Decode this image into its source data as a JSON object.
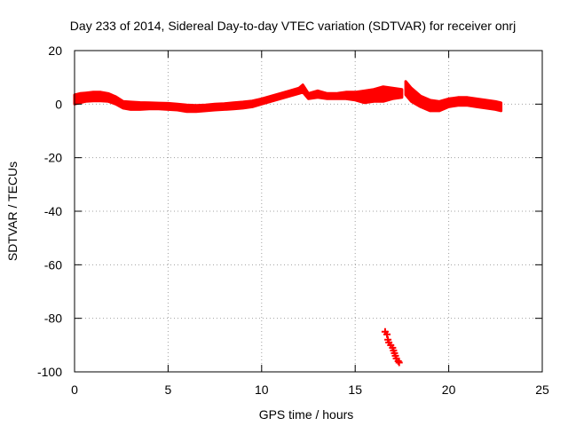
{
  "chart_data": {
    "type": "scatter",
    "title": "Day 233 of 2014, Sidereal Day-to-day VTEC variation (SDTVAR) for receiver onrj",
    "xlabel": "GPS time / hours",
    "ylabel": "SDTVAR / TECUs",
    "xlim": [
      0,
      25
    ],
    "ylim": [
      -100,
      20
    ],
    "xticks": [
      0,
      5,
      10,
      15,
      20,
      25
    ],
    "yticks": [
      -100,
      -80,
      -60,
      -40,
      -20,
      0,
      20
    ],
    "xtick_labels": [
      "0",
      "5",
      "10",
      "15",
      "20",
      "25"
    ],
    "ytick_labels": [
      "-100",
      "-80",
      "-60",
      "-40",
      "-20",
      "0",
      "20"
    ],
    "grid": true,
    "legend": "none",
    "marker": "plus",
    "color": "#ff0000",
    "series": [
      {
        "segments": [
          {
            "upper": [
              [
                0.0,
                3.5
              ],
              [
                0.3,
                4.0
              ],
              [
                0.6,
                4.2
              ],
              [
                1.0,
                4.5
              ],
              [
                1.4,
                4.5
              ],
              [
                1.8,
                4.0
              ],
              [
                2.2,
                2.8
              ],
              [
                2.6,
                1.0
              ],
              [
                3.0,
                0.8
              ],
              [
                3.5,
                0.6
              ],
              [
                4.0,
                0.5
              ],
              [
                4.5,
                0.4
              ],
              [
                5.0,
                0.3
              ],
              [
                5.5,
                0.0
              ],
              [
                6.0,
                -0.3
              ],
              [
                6.5,
                -0.5
              ],
              [
                7.0,
                -0.3
              ],
              [
                7.5,
                0.0
              ],
              [
                8.0,
                0.2
              ],
              [
                8.5,
                0.5
              ],
              [
                9.0,
                0.8
              ],
              [
                9.5,
                1.2
              ],
              [
                10.0,
                2.0
              ],
              [
                10.5,
                3.0
              ],
              [
                11.0,
                4.0
              ],
              [
                11.5,
                5.0
              ],
              [
                12.0,
                6.0
              ],
              [
                12.2,
                7.2
              ],
              [
                12.5,
                4.0
              ],
              [
                13.0,
                5.0
              ],
              [
                13.5,
                4.0
              ],
              [
                14.0,
                4.0
              ],
              [
                14.5,
                4.5
              ],
              [
                15.0,
                4.5
              ],
              [
                15.5,
                5.0
              ],
              [
                16.0,
                5.5
              ],
              [
                16.5,
                6.5
              ],
              [
                17.0,
                6.0
              ],
              [
                17.5,
                5.5
              ]
            ],
            "lower": [
              [
                0.0,
                0.0
              ],
              [
                0.3,
                0.5
              ],
              [
                0.6,
                1.0
              ],
              [
                1.0,
                1.2
              ],
              [
                1.4,
                1.2
              ],
              [
                1.8,
                1.0
              ],
              [
                2.2,
                0.0
              ],
              [
                2.6,
                -1.5
              ],
              [
                3.0,
                -2.0
              ],
              [
                3.5,
                -2.0
              ],
              [
                4.0,
                -1.8
              ],
              [
                4.5,
                -1.8
              ],
              [
                5.0,
                -2.0
              ],
              [
                5.5,
                -2.2
              ],
              [
                6.0,
                -2.8
              ],
              [
                6.5,
                -2.8
              ],
              [
                7.0,
                -2.5
              ],
              [
                7.5,
                -2.2
              ],
              [
                8.0,
                -2.0
              ],
              [
                8.5,
                -1.8
              ],
              [
                9.0,
                -1.5
              ],
              [
                9.5,
                -1.0
              ],
              [
                10.0,
                0.0
              ],
              [
                10.5,
                1.0
              ],
              [
                11.0,
                2.0
              ],
              [
                11.5,
                3.0
              ],
              [
                12.0,
                4.0
              ],
              [
                12.2,
                4.5
              ],
              [
                12.5,
                2.0
              ],
              [
                13.0,
                2.5
              ],
              [
                13.5,
                2.0
              ],
              [
                14.0,
                2.0
              ],
              [
                14.5,
                2.0
              ],
              [
                15.0,
                1.5
              ],
              [
                15.5,
                0.5
              ],
              [
                16.0,
                1.0
              ],
              [
                16.5,
                1.0
              ],
              [
                17.0,
                2.0
              ],
              [
                17.5,
                2.5
              ]
            ]
          },
          {
            "upper": [
              [
                17.7,
                8.5
              ],
              [
                18.0,
                6.0
              ],
              [
                18.5,
                3.0
              ],
              [
                19.0,
                1.5
              ],
              [
                19.5,
                1.0
              ],
              [
                20.0,
                2.0
              ],
              [
                20.5,
                2.5
              ],
              [
                21.0,
                2.5
              ],
              [
                21.5,
                2.0
              ],
              [
                22.0,
                1.5
              ],
              [
                22.5,
                1.0
              ],
              [
                22.8,
                0.5
              ]
            ],
            "lower": [
              [
                17.7,
                3.5
              ],
              [
                18.0,
                1.0
              ],
              [
                18.5,
                -1.0
              ],
              [
                19.0,
                -2.5
              ],
              [
                19.5,
                -2.5
              ],
              [
                20.0,
                -1.0
              ],
              [
                20.5,
                -0.5
              ],
              [
                21.0,
                -0.5
              ],
              [
                21.5,
                -1.0
              ],
              [
                22.0,
                -1.5
              ],
              [
                22.5,
                -2.0
              ],
              [
                22.8,
                -2.5
              ]
            ]
          }
        ],
        "outliers": [
          [
            16.6,
            -85
          ],
          [
            16.7,
            -86
          ],
          [
            16.75,
            -88
          ],
          [
            16.8,
            -89
          ],
          [
            16.9,
            -90
          ],
          [
            17.0,
            -91
          ],
          [
            17.05,
            -92
          ],
          [
            17.1,
            -93
          ],
          [
            17.15,
            -94
          ],
          [
            17.2,
            -95
          ],
          [
            17.3,
            -96
          ],
          [
            17.35,
            -96.5
          ]
        ]
      }
    ]
  }
}
